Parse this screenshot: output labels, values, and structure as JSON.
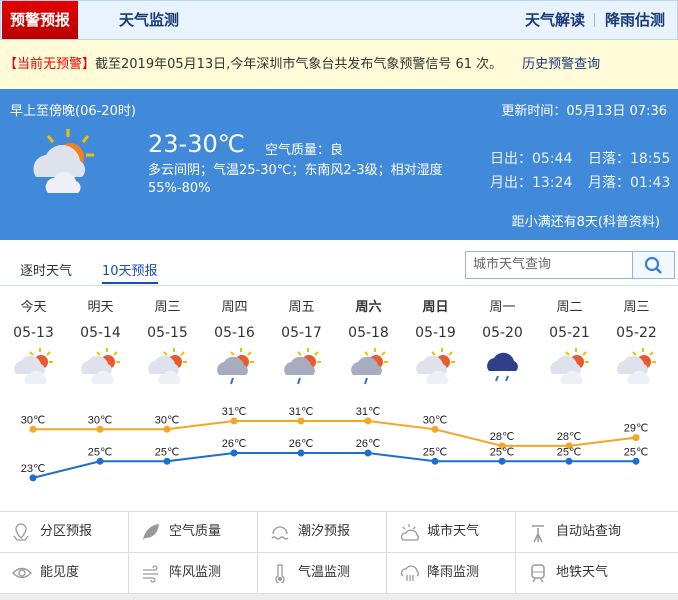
{
  "nav": {
    "active": "预警预报",
    "tab2": "天气监测",
    "right1": "天气解读",
    "right2": "降雨估测"
  },
  "alert": {
    "status": "【当前无预警】",
    "text": "截至2019年05月13日,今年深圳市气象台共发布气象预警信号 61 次。",
    "link": "历史预警查询"
  },
  "now": {
    "period": "早上至傍晚(06-20时)",
    "updated": "更新时间：05月13日 07:36",
    "temp": "23-30℃",
    "air": "空气质量：良",
    "desc": "多云间阴；气温25-30℃；东南风2-3级；相对湿度55%-80%",
    "sunrise": "日出：05:44",
    "sunset": "日落：18:55",
    "moonrise": "月出：13:24",
    "moonset": "月落：01:43",
    "term": "距小满还有8天(科普资料)",
    "icon": "partly-cloudy-icon"
  },
  "tabs": [
    {
      "label": "逐时天气"
    },
    {
      "label": "10天预报"
    }
  ],
  "search": {
    "placeholder": "城市天气查询"
  },
  "colors": {
    "high": "#f5a623",
    "low": "#1a6fd0",
    "accent": "#408ad9",
    "alert_red": "#e00000"
  },
  "forecast": [
    {
      "day": "今天",
      "date": "05-13",
      "icon": "partly-cloudy",
      "high": 30,
      "low": 23,
      "bold": false
    },
    {
      "day": "明天",
      "date": "05-14",
      "icon": "partly-cloudy",
      "high": 30,
      "low": 25,
      "bold": false
    },
    {
      "day": "周三",
      "date": "05-15",
      "icon": "partly-cloudy",
      "high": 30,
      "low": 25,
      "bold": false
    },
    {
      "day": "周四",
      "date": "05-16",
      "icon": "cloudy-shower",
      "high": 31,
      "low": 26,
      "bold": false
    },
    {
      "day": "周五",
      "date": "05-17",
      "icon": "cloudy-shower",
      "high": 31,
      "low": 26,
      "bold": false
    },
    {
      "day": "周六",
      "date": "05-18",
      "icon": "cloudy-shower",
      "high": 31,
      "low": 26,
      "bold": true
    },
    {
      "day": "周日",
      "date": "05-19",
      "icon": "partly-cloudy",
      "high": 30,
      "low": 25,
      "bold": true
    },
    {
      "day": "周一",
      "date": "05-20",
      "icon": "rain",
      "high": 28,
      "low": 25,
      "bold": false
    },
    {
      "day": "周二",
      "date": "05-21",
      "icon": "partly-cloudy",
      "high": 28,
      "low": 25,
      "bold": false
    },
    {
      "day": "周三",
      "date": "05-22",
      "icon": "partly-cloudy",
      "high": 29,
      "low": 25,
      "bold": false
    }
  ],
  "unit": "℃",
  "services": [
    {
      "label": "分区预报",
      "icon": "map-pin-icon"
    },
    {
      "label": "空气质量",
      "icon": "leaf-icon"
    },
    {
      "label": "潮汐预报",
      "icon": "tide-icon"
    },
    {
      "label": "城市天气",
      "icon": "sun-cloud-icon"
    },
    {
      "label": "自动站查询",
      "icon": "weather-station-icon"
    },
    {
      "label": "能见度",
      "icon": "eye-icon"
    },
    {
      "label": "阵风监测",
      "icon": "wind-icon"
    },
    {
      "label": "气温监测",
      "icon": "thermometer-icon"
    },
    {
      "label": "降雨监测",
      "icon": "rain-cloud-icon"
    },
    {
      "label": "地铁天气",
      "icon": "subway-icon"
    }
  ]
}
